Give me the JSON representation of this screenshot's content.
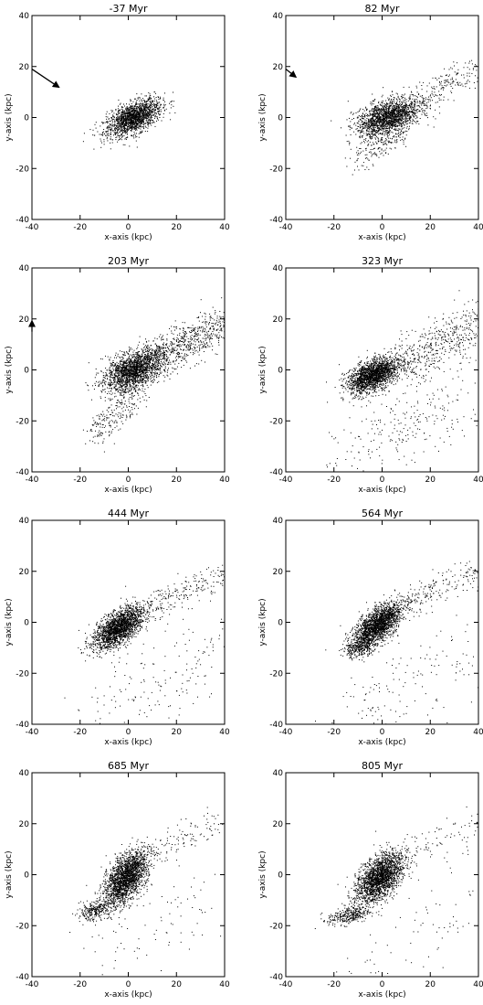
{
  "figure": {
    "xlabel": "x-axis (kpc)",
    "ylabel": "y-axis (kpc)",
    "ticks": [
      "-40",
      "-20",
      "0",
      "20",
      "40"
    ]
  },
  "chart_data": [
    {
      "type": "scatter",
      "title": "-37 Myr",
      "xlabel": "x-axis (kpc)",
      "ylabel": "y-axis (kpc)",
      "xlim": [
        -40,
        40
      ],
      "ylim": [
        -40,
        40
      ],
      "xticks": [
        -40,
        -20,
        0,
        20,
        40
      ],
      "yticks": [
        -40,
        -20,
        0,
        20,
        40
      ],
      "bodies": [
        {
          "cx": 2,
          "cy": 0,
          "rx": 11,
          "ry": 5,
          "angle_deg": 25,
          "n": 1700
        }
      ],
      "debris": [],
      "arrow": {
        "from": [
          -40,
          19
        ],
        "to": [
          -29,
          12
        ]
      }
    },
    {
      "type": "scatter",
      "title": "82 Myr",
      "xlabel": "x-axis (kpc)",
      "ylabel": "y-axis (kpc)",
      "xlim": [
        -40,
        40
      ],
      "ylim": [
        -40,
        40
      ],
      "xticks": [
        -40,
        -20,
        0,
        20,
        40
      ],
      "yticks": [
        -40,
        -20,
        0,
        20,
        40
      ],
      "bodies": [
        {
          "cx": 2,
          "cy": 0,
          "rx": 12,
          "ry": 6,
          "angle_deg": 20,
          "n": 1800
        }
      ],
      "debris": [
        {
          "x": [
            10,
            40
          ],
          "y": [
            4,
            20
          ],
          "spread": 5,
          "n": 220
        },
        {
          "x": [
            -12,
            10
          ],
          "y": [
            -18,
            -5
          ],
          "spread": 4,
          "n": 140
        }
      ],
      "arrow": {
        "from": [
          -40,
          19
        ],
        "to": [
          -36,
          16
        ]
      }
    },
    {
      "type": "scatter",
      "title": "203 Myr",
      "xlabel": "x-axis (kpc)",
      "ylabel": "y-axis (kpc)",
      "xlim": [
        -40,
        40
      ],
      "ylim": [
        -40,
        40
      ],
      "xticks": [
        -40,
        -20,
        0,
        20,
        40
      ],
      "yticks": [
        -40,
        -20,
        0,
        20,
        40
      ],
      "bodies": [
        {
          "cx": 2,
          "cy": 0,
          "rx": 12,
          "ry": 6,
          "angle_deg": 25,
          "n": 1900
        }
      ],
      "debris": [
        {
          "x": [
            10,
            40
          ],
          "y": [
            4,
            18
          ],
          "spread": 7,
          "n": 650
        },
        {
          "x": [
            -15,
            5
          ],
          "y": [
            -25,
            -8
          ],
          "spread": 6,
          "n": 250
        }
      ],
      "arrow": {
        "from": [
          -40,
          15
        ],
        "to": [
          -40,
          19
        ]
      }
    },
    {
      "type": "scatter",
      "title": "323 Myr",
      "xlabel": "x-axis (kpc)",
      "ylabel": "y-axis (kpc)",
      "xlim": [
        -40,
        40
      ],
      "ylim": [
        -40,
        40
      ],
      "xticks": [
        -40,
        -20,
        0,
        20,
        40
      ],
      "yticks": [
        -40,
        -20,
        0,
        20,
        40
      ],
      "bodies": [
        {
          "cx": -4,
          "cy": -2,
          "rx": 10,
          "ry": 5,
          "angle_deg": 25,
          "n": 1900
        }
      ],
      "debris": [
        {
          "x": [
            5,
            40
          ],
          "y": [
            2,
            18
          ],
          "spread": 8,
          "n": 520
        },
        {
          "x": [
            -15,
            35
          ],
          "y": [
            -35,
            -8
          ],
          "spread": 14,
          "n": 260
        }
      ],
      "arrow": null
    },
    {
      "type": "scatter",
      "title": "444 Myr",
      "xlabel": "x-axis (kpc)",
      "ylabel": "y-axis (kpc)",
      "xlim": [
        -40,
        40
      ],
      "ylim": [
        -40,
        40
      ],
      "xticks": [
        -40,
        -20,
        0,
        20,
        40
      ],
      "yticks": [
        -40,
        -20,
        0,
        20,
        40
      ],
      "bodies": [
        {
          "cx": -4,
          "cy": -2,
          "rx": 11,
          "ry": 5,
          "angle_deg": 35,
          "n": 2000
        }
      ],
      "debris": [
        {
          "x": [
            8,
            40
          ],
          "y": [
            6,
            18
          ],
          "spread": 5,
          "n": 200
        },
        {
          "x": [
            -15,
            40
          ],
          "y": [
            -38,
            -8
          ],
          "spread": 16,
          "n": 180
        }
      ],
      "arrow": null
    },
    {
      "type": "scatter",
      "title": "564 Myr",
      "xlabel": "x-axis (kpc)",
      "ylabel": "y-axis (kpc)",
      "xlim": [
        -40,
        40
      ],
      "ylim": [
        -40,
        40
      ],
      "xticks": [
        -40,
        -20,
        0,
        20,
        40
      ],
      "yticks": [
        -40,
        -20,
        0,
        20,
        40
      ],
      "bodies": [
        {
          "cx": -2,
          "cy": -1,
          "rx": 11,
          "ry": 5,
          "angle_deg": 40,
          "n": 2000
        },
        {
          "cx": -10,
          "cy": -10,
          "rx": 6,
          "ry": 3,
          "angle_deg": 10,
          "n": 250
        }
      ],
      "debris": [
        {
          "x": [
            10,
            40
          ],
          "y": [
            8,
            20
          ],
          "spread": 5,
          "n": 180
        },
        {
          "x": [
            -15,
            40
          ],
          "y": [
            -38,
            -8
          ],
          "spread": 16,
          "n": 150
        }
      ],
      "arrow": null
    },
    {
      "type": "scatter",
      "title": "685 Myr",
      "xlabel": "x-axis (kpc)",
      "ylabel": "y-axis (kpc)",
      "xlim": [
        -40,
        40
      ],
      "ylim": [
        -40,
        40
      ],
      "xticks": [
        -40,
        -20,
        0,
        20,
        40
      ],
      "yticks": [
        -40,
        -20,
        0,
        20,
        40
      ],
      "bodies": [
        {
          "cx": -1,
          "cy": -1,
          "rx": 11,
          "ry": 6,
          "angle_deg": 55,
          "n": 2100
        },
        {
          "cx": -14,
          "cy": -14,
          "rx": 7,
          "ry": 3,
          "angle_deg": 15,
          "n": 300
        }
      ],
      "debris": [
        {
          "x": [
            10,
            40
          ],
          "y": [
            8,
            22
          ],
          "spread": 5,
          "n": 100
        },
        {
          "x": [
            -15,
            40
          ],
          "y": [
            -35,
            -8
          ],
          "spread": 16,
          "n": 80
        }
      ],
      "arrow": null
    },
    {
      "type": "scatter",
      "title": "805 Myr",
      "xlabel": "x-axis (kpc)",
      "ylabel": "y-axis (kpc)",
      "xlim": [
        -40,
        40
      ],
      "ylim": [
        -40,
        40
      ],
      "xticks": [
        -40,
        -20,
        0,
        20,
        40
      ],
      "yticks": [
        -40,
        -20,
        0,
        20,
        40
      ],
      "bodies": [
        {
          "cx": -1,
          "cy": -1,
          "rx": 11,
          "ry": 6,
          "angle_deg": 45,
          "n": 2100
        },
        {
          "cx": -14,
          "cy": -16,
          "rx": 8,
          "ry": 3,
          "angle_deg": 10,
          "n": 320
        }
      ],
      "debris": [
        {
          "x": [
            8,
            40
          ],
          "y": [
            8,
            20
          ],
          "spread": 5,
          "n": 80
        },
        {
          "x": [
            -15,
            40
          ],
          "y": [
            -35,
            -8
          ],
          "spread": 16,
          "n": 70
        }
      ],
      "arrow": null
    }
  ]
}
